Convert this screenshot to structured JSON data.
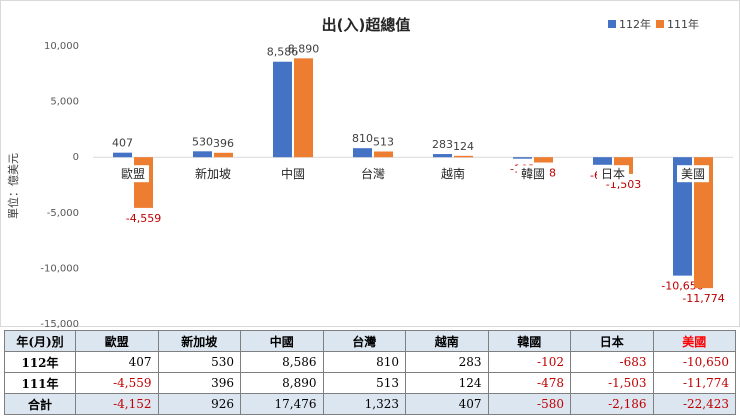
{
  "chart_data": {
    "type": "bar",
    "title": "出(入)超總值",
    "ylabel": "單位：億美元",
    "categories": [
      "歐盟",
      "新加坡",
      "中國",
      "台灣",
      "越南",
      "韓國",
      "日本",
      "美國"
    ],
    "series": [
      {
        "name": "112年",
        "values": [
          407,
          530,
          8586,
          810,
          283,
          -102,
          -683,
          -10650
        ]
      },
      {
        "name": "111年",
        "values": [
          -4559,
          396,
          8890,
          513,
          124,
          -478,
          -1503,
          -11774
        ]
      }
    ],
    "ylim": [
      -15000,
      10000
    ],
    "yticks": [
      10000,
      5000,
      0,
      -5000,
      -10000,
      -15000
    ],
    "ytick_labels": [
      "10,000",
      "5,000",
      "0",
      "-5,000",
      "-10,000",
      "-15,000"
    ],
    "value_labels": [
      [
        "407",
        "530",
        "8,586",
        "810",
        "283",
        "-102",
        "-683",
        "-10,650"
      ],
      [
        "-4,559",
        "396",
        "8,890",
        "513",
        "124",
        "-478",
        "-1,503",
        "-11,774"
      ]
    ],
    "legend_position": "top-right",
    "grid": false
  },
  "colors": {
    "series_112": "#4472c4",
    "series_111": "#ed7d31",
    "negative_text": "#c00000",
    "highlight": "#ff0000",
    "header_bg": "#dce6f1"
  },
  "table": {
    "corner": "年(月)別",
    "columns": [
      "歐盟",
      "新加坡",
      "中國",
      "台灣",
      "越南",
      "韓國",
      "日本",
      "美國"
    ],
    "highlight_column": 7,
    "rows": [
      {
        "label": "112年",
        "cells": [
          "407",
          "530",
          "8,586",
          "810",
          "283",
          "-102",
          "-683",
          "-10,650"
        ]
      },
      {
        "label": "111年",
        "cells": [
          "-4,559",
          "396",
          "8,890",
          "513",
          "124",
          "-478",
          "-1,503",
          "-11,774"
        ]
      },
      {
        "label": "合計",
        "cells": [
          "-4,152",
          "926",
          "17,476",
          "1,323",
          "407",
          "-580",
          "-2,186",
          "-22,423"
        ]
      }
    ]
  }
}
